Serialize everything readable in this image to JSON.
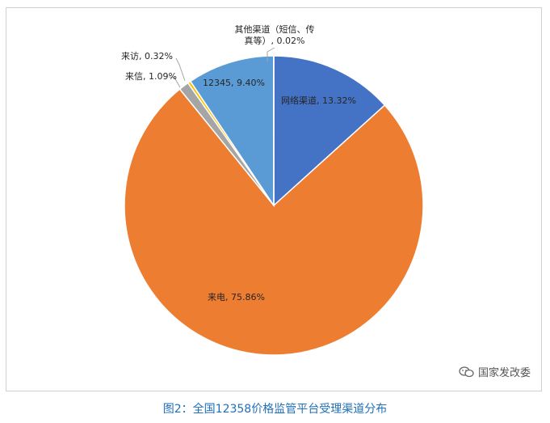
{
  "chart_data": {
    "type": "pie",
    "slices": [
      {
        "label": "网络渠道",
        "value": 13.32,
        "display": "网络渠道, 13.32%",
        "color": "#4472c4"
      },
      {
        "label": "来电",
        "value": 75.86,
        "display": "来电, 75.86%",
        "color": "#ed7d31"
      },
      {
        "label": "来信",
        "value": 1.09,
        "display": "来信, 1.09%",
        "color": "#a5a5a5"
      },
      {
        "label": "来访",
        "value": 0.32,
        "display": "来访, 0.32%",
        "color": "#ffc000"
      },
      {
        "label": "12345",
        "value": 9.4,
        "display": "12345, 9.40%",
        "color": "#5b9bd5"
      },
      {
        "label": "其他渠道（短信、传真等）",
        "value": 0.02,
        "display": "其他渠道（短信、传真等）, 0.02%",
        "color": "#70ad47"
      }
    ],
    "labels_shown": {
      "other_line1": "其他渠道（短信、传",
      "other_line2": "真等）, 0.02%",
      "visit": "来访, 0.32%",
      "letter": "来信, 1.09%",
      "hotline": "12345, 9.40%",
      "online": "网络渠道, 13.32%",
      "phone": "来电, 75.86%"
    }
  },
  "watermark": {
    "text": "国家发改委",
    "icon": "wechat-icon"
  },
  "caption": "图2：全国12358价格监管平台受理渠道分布"
}
